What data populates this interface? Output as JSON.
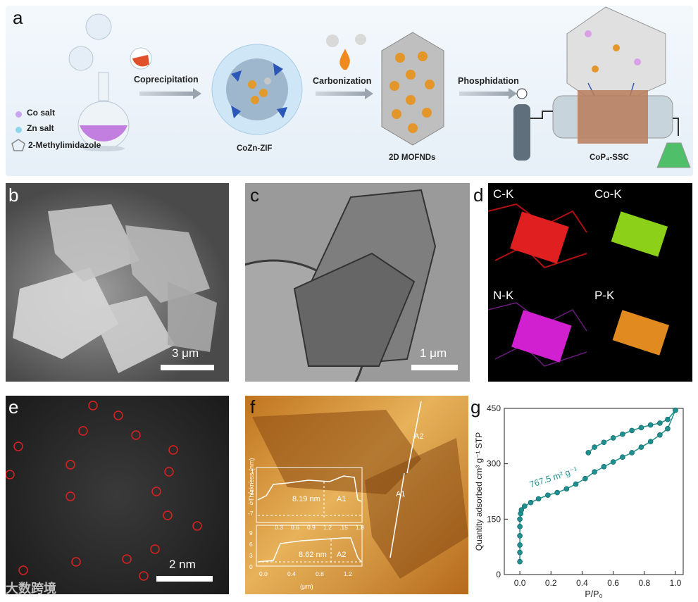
{
  "panels": {
    "a": {
      "label": "a",
      "steps": [
        "Coprecipitation",
        "Carbonization",
        "Phosphidation"
      ],
      "products": [
        "CoZn-ZIF",
        "2D MOFNDs",
        "CoP₄-SSC"
      ],
      "legend": [
        "Co salt",
        "Zn salt",
        "2-Methylimidazole"
      ]
    },
    "b": {
      "label": "b",
      "scale": "3 μm"
    },
    "c": {
      "label": "c",
      "scale": "1 μm"
    },
    "d": {
      "label": "d",
      "maps": [
        "C-K",
        "Co-K",
        "N-K",
        "P-K"
      ]
    },
    "e": {
      "label": "e",
      "scale": "2 nm"
    },
    "f": {
      "label": "f",
      "lines": [
        "A2",
        "A1"
      ],
      "inset": {
        "ylabel": "Thickness (nm)",
        "xlabel": "(μm)",
        "top": {
          "yticks": [
            "1",
            "-1",
            "-3",
            "-5",
            "-7"
          ],
          "xticks": [
            "0.3",
            "0.6",
            "0.9",
            "1.2",
            ".15",
            "1.8"
          ],
          "annotation": "8.19 nm",
          "tag": "A1"
        },
        "bottom": {
          "yticks": [
            "9",
            "6",
            "3",
            "0"
          ],
          "xticks": [
            "0.0",
            "0.4",
            "0.8",
            "1.2"
          ],
          "annotation": "8.62 nm",
          "tag": "A2"
        }
      }
    },
    "g": {
      "label": "g"
    }
  },
  "watermark": "大数跨境",
  "chart_data": {
    "type": "line",
    "xlabel": "P/P₀",
    "ylabel": "Quantity adsorbed cm³ g⁻¹ STP",
    "annotation": "767.5 m² g⁻¹",
    "xlim": [
      -0.1,
      1.05
    ],
    "ylim": [
      0,
      450
    ],
    "xticks": [
      "0.0",
      "0.2",
      "0.4",
      "0.6",
      "0.8",
      "1.0"
    ],
    "yticks": [
      "0",
      "150",
      "300",
      "450"
    ],
    "color": "#1f8f8f",
    "series": [
      {
        "x": [
          0.0,
          0.0,
          0.0,
          0.0,
          0.0,
          0.0,
          0.005,
          0.01,
          0.03,
          0.07,
          0.12,
          0.18,
          0.24,
          0.3,
          0.36,
          0.42,
          0.48,
          0.54,
          0.6,
          0.66,
          0.72,
          0.78,
          0.84,
          0.9,
          0.95,
          1.0
        ],
        "y": [
          35,
          60,
          80,
          105,
          130,
          150,
          165,
          175,
          185,
          195,
          205,
          215,
          222,
          232,
          245,
          260,
          278,
          292,
          305,
          318,
          330,
          345,
          360,
          378,
          395,
          445
        ]
      },
      {
        "x": [
          1.0,
          0.95,
          0.9,
          0.84,
          0.78,
          0.72,
          0.66,
          0.6,
          0.54,
          0.48,
          0.44
        ],
        "y": [
          445,
          420,
          410,
          405,
          398,
          390,
          380,
          370,
          358,
          345,
          330
        ]
      }
    ]
  }
}
